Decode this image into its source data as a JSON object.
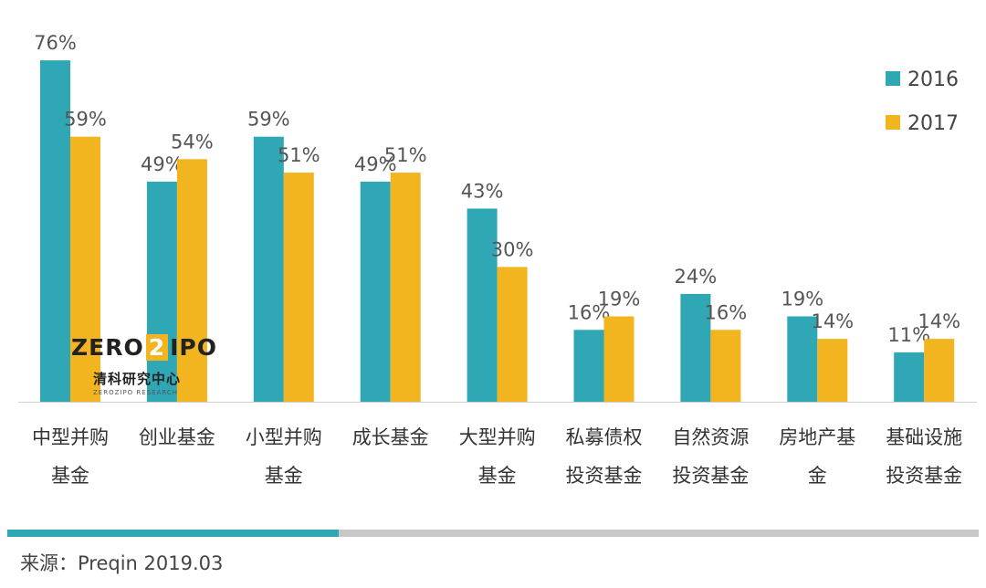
{
  "chart_data": {
    "type": "bar",
    "categories": [
      [
        "中型并购",
        "基金"
      ],
      [
        "创业基金"
      ],
      [
        "小型并购",
        "基金"
      ],
      [
        "成长基金"
      ],
      [
        "大型并购",
        "基金"
      ],
      [
        "私募债权",
        "投资基金"
      ],
      [
        "自然资源",
        "投资基金"
      ],
      [
        "房地产基",
        "金"
      ],
      [
        "基础设施",
        "投资基金"
      ]
    ],
    "series": [
      {
        "name": "2016",
        "color": "#2fa7b4",
        "values": [
          76,
          49,
          59,
          49,
          43,
          16,
          24,
          19,
          11
        ]
      },
      {
        "name": "2017",
        "color": "#f2b51f",
        "values": [
          59,
          54,
          51,
          51,
          30,
          19,
          16,
          14,
          14
        ]
      }
    ],
    "value_suffix": "%",
    "ylim": [
      0,
      80
    ],
    "grid": false,
    "legend_position": "top-right"
  },
  "logo": {
    "left": "ZERO",
    "box": "2",
    "right": "IPO",
    "cn": "清科研究中心",
    "sub": "ZEROZIPO RESEARCH"
  },
  "source": "来源：Preqin 2019.03"
}
